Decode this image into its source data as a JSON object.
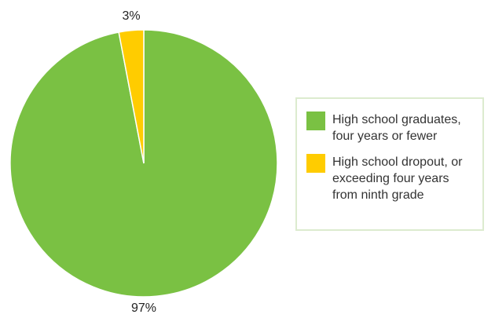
{
  "chart_data": {
    "type": "pie",
    "slices": [
      {
        "label": "High school graduates,\nfour years or fewer",
        "value": 97,
        "value_label": "97%",
        "color": "#7ac143"
      },
      {
        "label": "High school dropout, or\nexceeding four years\nfrom ninth grade",
        "value": 3,
        "value_label": "3%",
        "color": "#ffcc00"
      }
    ],
    "start": "top",
    "direction": "clockwise",
    "legend_position": "right"
  }
}
